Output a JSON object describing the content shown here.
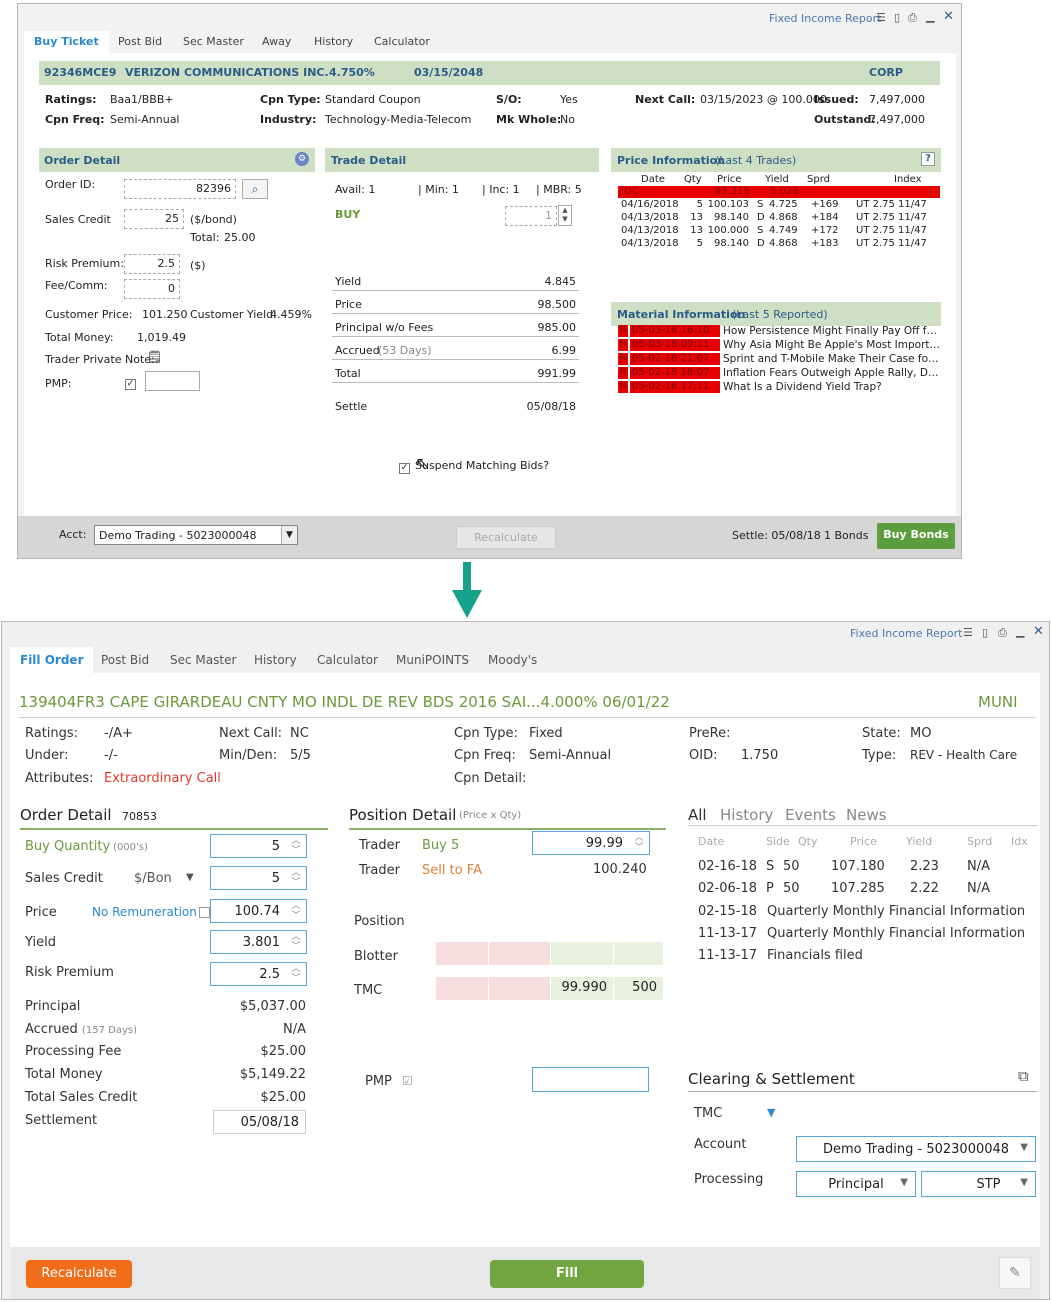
{
  "w1": {
    "title": "Fixed Income Report",
    "tabs": [
      "Buy Ticket",
      "Post Bid",
      "Sec Master",
      "Away",
      "History",
      "Calculator"
    ],
    "header": {
      "cusip": "92346MCE9",
      "issuer": "VERIZON COMMUNICATIONS INC.",
      "coupon": "4.750%",
      "maturity": "03/15/2048",
      "type": "CORP"
    },
    "info": {
      "ratings_label": "Ratings:",
      "ratings": "Baa1/BBB+",
      "cpnfreq_label": "Cpn Freq:",
      "cpnfreq": "Semi-Annual",
      "cpntype_label": "Cpn Type:",
      "cpntype": "Standard Coupon",
      "industry_label": "Industry:",
      "industry": "Technology-Media-Telecom",
      "so_label": "S/O:",
      "so": "Yes",
      "mkwhole_label": "Mk Whole:",
      "mkwhole": "No",
      "nextcall_label": "Next Call:",
      "nextcall": "03/15/2023 @ 100.000",
      "issued_label": "Issued:",
      "issued": "7,497,000",
      "outstanding_label": "Outstand:",
      "outstanding": "7,497,000"
    },
    "order": {
      "title": "Order Detail",
      "orderid_label": "Order ID:",
      "orderid": "82396",
      "salescredit_label": "Sales Credit",
      "salescredit": "25",
      "salescredit_unit": "($/bond)",
      "total_label": "Total:",
      "total": "25.00",
      "riskprem_label": "Risk Premium:",
      "riskprem": "2.5",
      "riskprem_unit": "($)",
      "fee_label": "Fee/Comm:",
      "fee": "0",
      "custprice_label": "Customer Price:",
      "custprice": "101.250",
      "custyield_label": "Customer Yield:",
      "custyield": "4.459%",
      "totalmoney_label": "Total Money:",
      "totalmoney": "1,019.49",
      "note_label": "Trader Private Note:",
      "pmp_label": "PMP:"
    },
    "trade": {
      "title": "Trade Detail",
      "avail": "Avail: 1",
      "min": "| Min: 1",
      "inc": "| Inc: 1",
      "mbr": "| MBR: 5",
      "side": "BUY",
      "qty": "1",
      "rows": [
        {
          "label": "Yield",
          "value": "4.845"
        },
        {
          "label": "Price",
          "value": "98.500"
        },
        {
          "label": "Principal w/o Fees",
          "value": "985.00"
        },
        {
          "label": "Accrued",
          "sub": "(53 Days)",
          "value": "6.99"
        },
        {
          "label": "Total",
          "value": "991.99"
        },
        {
          "label": "Settle",
          "value": "05/08/18"
        }
      ],
      "suspend": "Suspend Matching Bids?"
    },
    "price": {
      "title": "Price Information",
      "sub": "(Last 4 Trades)",
      "help": "?",
      "cols": [
        "Date",
        "Qty",
        "Price",
        "Yield",
        "Sprd",
        "Index"
      ],
      "ioc": {
        "date": "IOC",
        "price": "95.219",
        "yield": "5.028"
      },
      "rows": [
        {
          "date": "04/16/2018",
          "qty": "5",
          "price": "100.103",
          "side": "S",
          "yield": "4.725",
          "sprd": "+169",
          "index": "UT 2.75 11/47"
        },
        {
          "date": "04/13/2018",
          "qty": "13",
          "price": "98.140",
          "side": "D",
          "yield": "4.868",
          "sprd": "+184",
          "index": "UT 2.75 11/47"
        },
        {
          "date": "04/13/2018",
          "qty": "13",
          "price": "100.000",
          "side": "S",
          "yield": "4.749",
          "sprd": "+172",
          "index": "UT 2.75 11/47"
        },
        {
          "date": "04/13/2018",
          "qty": "5",
          "price": "98.140",
          "side": "D",
          "yield": "4.868",
          "sprd": "+183",
          "index": "UT 2.75 11/47"
        }
      ]
    },
    "material": {
      "title": "Material Information",
      "sub": "(Last 5 Reported)",
      "rows": [
        {
          "flag": "N",
          "ts": "05-03-18 16:10",
          "text": "How Persistence Might Finally Pay Off for..."
        },
        {
          "flag": "N",
          "ts": "05-03-18 09:11",
          "text": "Why Asia Might Be Apple's Most Importa..."
        },
        {
          "flag": "N",
          "ts": "05-02-18 21:07",
          "text": "Sprint and T-Mobile Make Their Case for ..."
        },
        {
          "flag": "N",
          "ts": "05-02-18 18:07",
          "text": "Inflation Fears Outweigh Apple Rally, Do..."
        },
        {
          "flag": "N",
          "ts": "05-02-18 17:11",
          "text": "What Is a Dividend Yield Trap?"
        }
      ]
    },
    "footer": {
      "acct_label": "Acct:",
      "acct": "Demo Trading - 5023000048",
      "recalc": "Recalculate",
      "settle": "Settle: 05/08/18",
      "bonds": "1 Bonds",
      "buy": "Buy Bonds"
    }
  },
  "w2": {
    "title": "Fixed Income Report",
    "tabs": [
      "Fill Order",
      "Post Bid",
      "Sec Master",
      "History",
      "Calculator",
      "MuniPOINTS",
      "Moody's"
    ],
    "header": {
      "title": "139404FR3   CAPE GIRARDEAU CNTY MO INDL DE REV BDS 2016 SAI...4.000% 06/01/22",
      "type": "MUNI"
    },
    "info": {
      "ratings_label": "Ratings:",
      "ratings": "-/A+",
      "under_label": "Under:",
      "under": "-/-",
      "attr_label": "Attributes:",
      "attr": "Extraordinary Call",
      "nextcall_label": "Next Call:",
      "nextcall": "NC",
      "minden_label": "Min/Den:",
      "minden": "5/5",
      "cpntype_label": "Cpn Type:",
      "cpntype": "Fixed",
      "cpnfreq_label": "Cpn Freq:",
      "cpnfreq": "Semi-Annual",
      "cpndetail_label": "Cpn Detail:",
      "prere_label": "PreRe:",
      "oid_label": "OID:",
      "oid": "1.750",
      "state_label": "State:",
      "state": "MO",
      "type_label": "Type:",
      "type": "REV - Health Care"
    },
    "order": {
      "title": "Order Detail",
      "id": "70853",
      "buyqty_label": "Buy Quantity",
      "buyqty_sub": "(000's)",
      "buyqty": "5",
      "sc_label": "Sales Credit",
      "sc_unit": "$/Bon",
      "sc": "5",
      "price_label": "Price",
      "price_note": "No Remuneration",
      "price": "100.74",
      "yield_label": "Yield",
      "yield": "3.801",
      "rp_label": "Risk Premium",
      "rp": "2.5",
      "rows": [
        {
          "label": "Principal",
          "value": "$5,037.00"
        },
        {
          "label": "Accrued",
          "sub": "(157 Days)",
          "value": "N/A"
        },
        {
          "label": "Processing Fee",
          "value": "$25.00"
        },
        {
          "label": "Total Money",
          "value": "$5,149.22"
        },
        {
          "label": "Total Sales Credit",
          "value": "$25.00"
        }
      ],
      "settle_label": "Settlement",
      "settle": "05/08/18"
    },
    "position": {
      "title": "Position Detail",
      "sub": "(Price x Qty)",
      "trader1_label": "Trader",
      "trader1_action": "Buy 5",
      "trader1_val": "99.99",
      "trader2_label": "Trader",
      "trader2_action": "Sell to FA",
      "trader2_val": "100.240",
      "position_label": "Position",
      "blotter_label": "Blotter",
      "tmc_label": "TMC",
      "tmc_price": "99.990",
      "tmc_qty": "500",
      "pmp_label": "PMP"
    },
    "history": {
      "tabs": [
        "All",
        "History",
        "Events",
        "News"
      ],
      "cols": [
        "Date",
        "Side",
        "Qty",
        "Price",
        "Yield",
        "Sprd",
        "Idx"
      ],
      "trades": [
        {
          "date": "02-16-18",
          "side": "S",
          "qty": "50",
          "price": "107.180",
          "yield": "2.23",
          "sprd": "N/A"
        },
        {
          "date": "02-06-18",
          "side": "P",
          "qty": "50",
          "price": "107.285",
          "yield": "2.22",
          "sprd": "N/A"
        }
      ],
      "events": [
        {
          "date": "02-15-18",
          "text": "Quarterly Monthly Financial Information"
        },
        {
          "date": "11-13-17",
          "text": "Quarterly Monthly Financial Information"
        },
        {
          "date": "11-13-17",
          "text": "Financials filed"
        }
      ]
    },
    "clearing": {
      "title": "Clearing & Settlement",
      "tmc_label": "TMC",
      "account_label": "Account",
      "account": "Demo Trading - 5023000048",
      "processing_label": "Processing",
      "processing": "Principal",
      "stp": "STP"
    },
    "footer": {
      "recalc": "Recalculate",
      "fill": "Fill"
    }
  },
  "colors": {
    "green_header": "#cfdfc4",
    "green_btn": "#5c9e3e",
    "orange_btn": "#f26d1a",
    "blue_tab": "#2a8ad0",
    "red": "#e60000",
    "teal_arrow": "#17a08a"
  }
}
